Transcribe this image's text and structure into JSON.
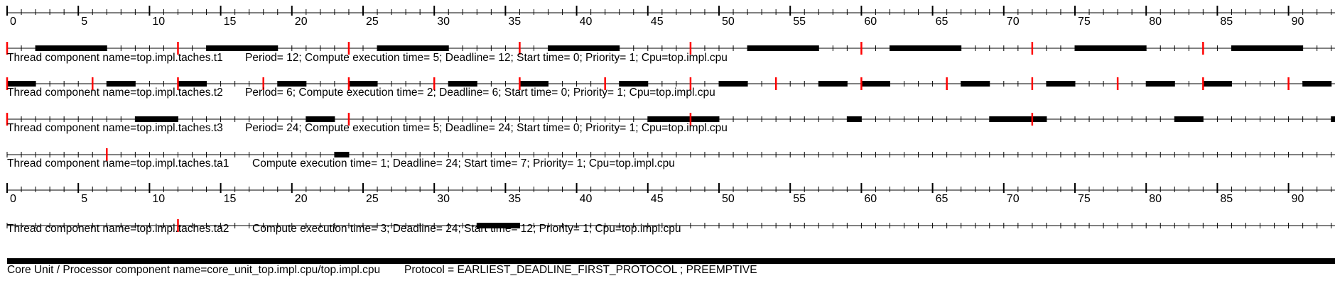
{
  "chart_data": {
    "type": "gantt",
    "time_axis": {
      "min": 0,
      "max": 93,
      "major_tick_step": 5,
      "minor_tick_step": 1,
      "tick_labels": [
        "0",
        "5",
        "10",
        "15",
        "20",
        "25",
        "30",
        "35",
        "40",
        "45",
        "50",
        "55",
        "60",
        "65",
        "70",
        "75",
        "80",
        "85",
        "90"
      ]
    },
    "rows": [
      {
        "kind": "axis"
      },
      {
        "kind": "task",
        "name_label": "Thread component name=top.impl.taches.t1",
        "props_label": "Period= 12; Compute execution time= 5; Deadline= 12; Start time= 0; Priority= 1; Cpu=top.impl.cpu",
        "releases": [
          0,
          12,
          24,
          36,
          48,
          60,
          72,
          84
        ],
        "executions": [
          [
            2,
            7
          ],
          [
            14,
            19
          ],
          [
            26,
            31
          ],
          [
            38,
            43
          ],
          [
            52,
            57
          ],
          [
            62,
            67
          ],
          [
            75,
            80
          ],
          [
            86,
            91
          ]
        ]
      },
      {
        "kind": "task",
        "name_label": "Thread component name=top.impl.taches.t2",
        "props_label": "Period= 6; Compute execution time= 2; Deadline= 6; Start time= 0; Priority= 1; Cpu=top.impl.cpu",
        "releases": [
          0,
          6,
          12,
          18,
          24,
          30,
          36,
          42,
          48,
          54,
          60,
          66,
          72,
          78,
          84,
          90
        ],
        "executions": [
          [
            0,
            2
          ],
          [
            7,
            9
          ],
          [
            12,
            14
          ],
          [
            19,
            21
          ],
          [
            24,
            26
          ],
          [
            31,
            33
          ],
          [
            36,
            38
          ],
          [
            43,
            45
          ],
          [
            50,
            52
          ],
          [
            57,
            59
          ],
          [
            60,
            62
          ],
          [
            67,
            69
          ],
          [
            73,
            75
          ],
          [
            80,
            82
          ],
          [
            84,
            86
          ],
          [
            91,
            93
          ]
        ]
      },
      {
        "kind": "task",
        "name_label": "Thread component name=top.impl.taches.t3",
        "props_label": "Period= 24; Compute execution time= 5; Deadline= 24; Start time= 0; Priority= 1; Cpu=top.impl.cpu",
        "releases": [
          0,
          24,
          48,
          72
        ],
        "executions": [
          [
            9,
            12
          ],
          [
            21,
            23
          ],
          [
            45,
            50
          ],
          [
            59,
            60
          ],
          [
            69,
            73
          ],
          [
            82,
            84
          ],
          [
            93,
            93.5
          ]
        ]
      },
      {
        "kind": "task",
        "name_label": "Thread component name=top.impl.taches.ta1",
        "props_label": "Compute execution time= 1; Deadline= 24; Start time= 7; Priority= 1; Cpu=top.impl.cpu",
        "releases": [
          7
        ],
        "executions": [
          [
            23,
            24
          ]
        ]
      },
      {
        "kind": "axis"
      },
      {
        "kind": "task",
        "name_label": "Thread component name=top.impl.taches.ta2",
        "props_label": "Compute execution time= 3; Deadline= 24; Start time= 12; Priority= 1; Cpu=top.impl.cpu",
        "releases": [
          12
        ],
        "executions": [
          [
            33,
            36
          ]
        ]
      },
      {
        "kind": "processor",
        "name_label": "Core Unit / Processor component name=core_unit_top.impl.cpu/top.impl.cpu",
        "props_label": "Protocol = EARLIEST_DEADLINE_FIRST_PROTOCOL ; PREEMPTIVE"
      }
    ],
    "colors": {
      "release_marker": "#ff0000",
      "execution": "#000000",
      "axis": "#000000"
    }
  }
}
